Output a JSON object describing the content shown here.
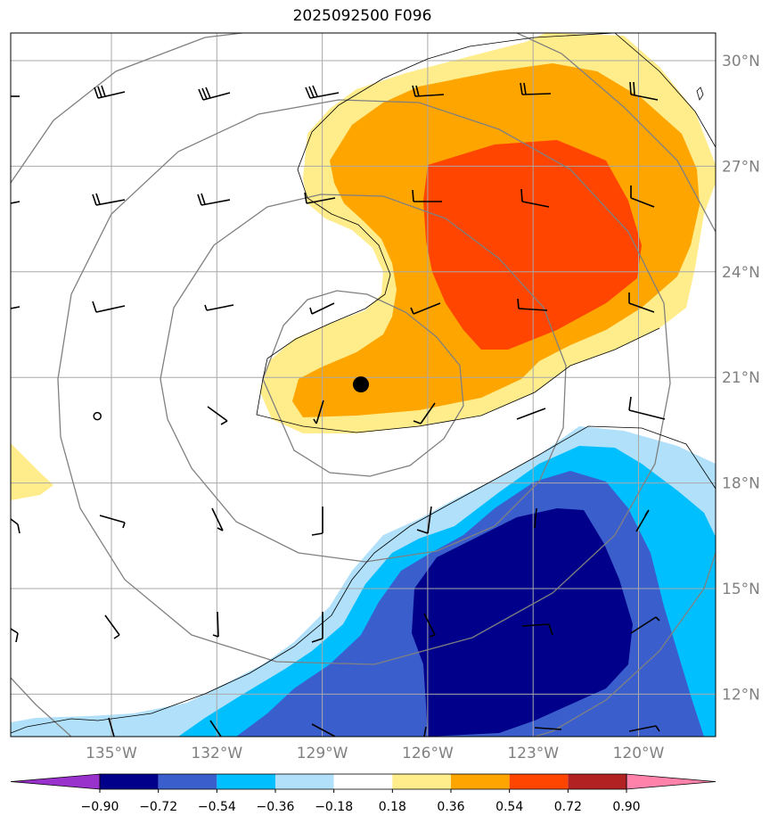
{
  "title": "2025092500 F096",
  "lat_labels": [
    {
      "text": "30°N",
      "value": 30
    },
    {
      "text": "27°N",
      "value": 27
    },
    {
      "text": "24°N",
      "value": 24
    },
    {
      "text": "21°N",
      "value": 21
    },
    {
      "text": "18°N",
      "value": 18
    },
    {
      "text": "15°N",
      "value": 15
    },
    {
      "text": "12°N",
      "value": 12
    }
  ],
  "lon_labels": [
    {
      "text": "135°W",
      "value": -135
    },
    {
      "text": "132°W",
      "value": -132
    },
    {
      "text": "129°W",
      "value": -129
    },
    {
      "text": "126°W",
      "value": -126
    },
    {
      "text": "123°W",
      "value": -123
    },
    {
      "text": "120°W",
      "value": -120
    }
  ],
  "colorbar": {
    "ticks": [
      "−0.90",
      "−0.72",
      "−0.54",
      "−0.36",
      "−0.18",
      "0.18",
      "0.36",
      "0.54",
      "0.72",
      "0.90"
    ],
    "colors": [
      "#9932cc",
      "#00008b",
      "#3a5fcd",
      "#00bfff",
      "#b0e0fa",
      "#ffffff",
      "#ffec8b",
      "#ffa500",
      "#ff4500",
      "#b22222",
      "#ff82ab"
    ]
  },
  "fill_colors": {
    "pos1": "#ffec8b",
    "pos2": "#ffa500",
    "pos3": "#ff4500",
    "neg1": "#b0e0fa",
    "neg2": "#00bfff",
    "neg3": "#3a5fcd",
    "neg4": "#00008b"
  },
  "center_marker": {
    "lon": -127.9,
    "lat": 20.8
  },
  "calm_marker": {
    "lon": -135.4,
    "lat": 19.9
  }
}
